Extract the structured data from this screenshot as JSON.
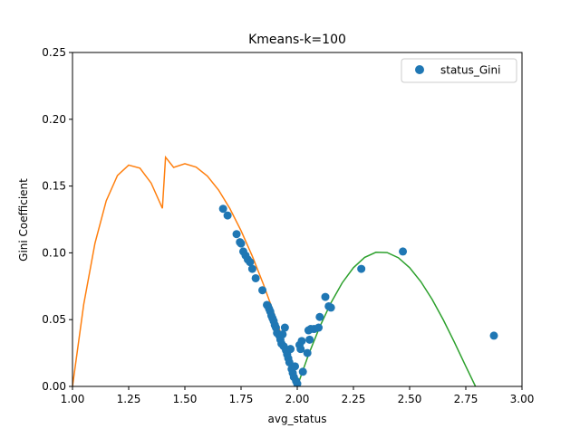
{
  "chart_data": {
    "type": "scatter",
    "title": "Kmeans-k=100",
    "xlabel": "avg_status",
    "ylabel": "Gini Coefficient",
    "xlim": [
      1.0,
      3.0
    ],
    "ylim": [
      0.0,
      0.25
    ],
    "xticks": [
      "1.00",
      "1.25",
      "1.50",
      "1.75",
      "2.00",
      "2.25",
      "2.50",
      "2.75",
      "3.00"
    ],
    "yticks": [
      "0.00",
      "0.05",
      "0.10",
      "0.15",
      "0.20",
      "0.25"
    ],
    "grid": false,
    "legend": {
      "position": "top-right",
      "entries": [
        "status_Gini"
      ]
    },
    "colors": {
      "points": "#1f77b4",
      "curve_left": "#ff7f0e",
      "curve_right": "#2ca02c"
    },
    "series": [
      {
        "name": "status_Gini",
        "kind": "scatter",
        "x": [
          1.67,
          1.69,
          1.73,
          1.745,
          1.75,
          1.76,
          1.77,
          1.78,
          1.79,
          1.8,
          1.815,
          1.845,
          1.865,
          1.87,
          1.875,
          1.88,
          1.885,
          1.89,
          1.895,
          1.9,
          1.905,
          1.91,
          1.92,
          1.925,
          1.93,
          1.935,
          1.94,
          1.945,
          1.95,
          1.955,
          1.96,
          1.965,
          1.97,
          1.975,
          1.98,
          1.985,
          1.99,
          1.995,
          2.0,
          2.01,
          2.015,
          2.02,
          2.025,
          2.045,
          2.05,
          2.055,
          2.06,
          2.075,
          2.095,
          2.1,
          2.125,
          2.14,
          2.15,
          2.285,
          2.47,
          2.875
        ],
        "y": [
          0.133,
          0.128,
          0.114,
          0.108,
          0.107,
          0.101,
          0.098,
          0.095,
          0.093,
          0.088,
          0.081,
          0.072,
          0.061,
          0.06,
          0.058,
          0.056,
          0.053,
          0.051,
          0.049,
          0.046,
          0.044,
          0.04,
          0.038,
          0.035,
          0.032,
          0.039,
          0.03,
          0.044,
          0.027,
          0.024,
          0.021,
          0.018,
          0.028,
          0.013,
          0.01,
          0.007,
          0.015,
          0.004,
          0.002,
          0.031,
          0.028,
          0.034,
          0.011,
          0.025,
          0.042,
          0.035,
          0.043,
          0.043,
          0.044,
          0.052,
          0.067,
          0.06,
          0.059,
          0.088,
          0.101,
          0.038
        ]
      },
      {
        "kind": "line",
        "color_key": "curve_left",
        "x": [
          1.0,
          1.05,
          1.1,
          1.15,
          1.2,
          1.25,
          1.3,
          1.35,
          1.4,
          1.414,
          1.45,
          1.5,
          1.55,
          1.6,
          1.65,
          1.7,
          1.75,
          1.8,
          1.85,
          1.9,
          1.95,
          2.0
        ],
        "y": [
          0.0,
          0.0615,
          0.1072,
          0.1389,
          0.1579,
          0.1657,
          0.1634,
          0.1522,
          0.1333,
          0.1716,
          0.164,
          0.1667,
          0.1642,
          0.1575,
          0.147,
          0.1332,
          0.1166,
          0.0975,
          0.0762,
          0.053,
          0.0282,
          0.0
        ]
      },
      {
        "kind": "line",
        "color_key": "curve_right",
        "x": [
          2.0,
          2.05,
          2.1,
          2.15,
          2.2,
          2.25,
          2.3,
          2.35,
          2.4,
          2.45,
          2.5,
          2.55,
          2.6,
          2.65,
          2.7,
          2.75,
          2.8,
          2.85,
          2.9,
          2.95,
          3.0
        ],
        "y": [
          0.0,
          0.0237,
          0.0446,
          0.0626,
          0.0775,
          0.0889,
          0.0966,
          0.1004,
          0.1002,
          0.0963,
          0.0889,
          0.0784,
          0.0652,
          0.0498,
          0.0328,
          0.015,
          -0.0024,
          -0.0165,
          -0.0247,
          -0.0234,
          0.0
        ]
      }
    ]
  }
}
